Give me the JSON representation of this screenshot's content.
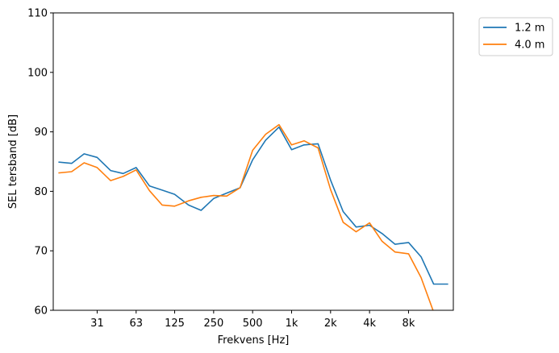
{
  "chart_data": {
    "type": "line",
    "xlabel": "Frekvens [Hz]",
    "ylabel": "SEL tersband [dB]",
    "ylim": [
      60,
      110
    ],
    "yticks": [
      60,
      70,
      80,
      90,
      100,
      110
    ],
    "x_scale": "log",
    "x_ticks": [
      {
        "value": 31.5,
        "label": "31"
      },
      {
        "value": 63,
        "label": "63"
      },
      {
        "value": 125,
        "label": "125"
      },
      {
        "value": 250,
        "label": "250"
      },
      {
        "value": 500,
        "label": "500"
      },
      {
        "value": 1000,
        "label": "1k"
      },
      {
        "value": 2000,
        "label": "2k"
      },
      {
        "value": 4000,
        "label": "4k"
      },
      {
        "value": 8000,
        "label": "8k"
      }
    ],
    "x": [
      16,
      20,
      25,
      31.5,
      40,
      50,
      63,
      80,
      100,
      125,
      160,
      200,
      250,
      315,
      400,
      500,
      630,
      800,
      1000,
      1250,
      1600,
      2000,
      2500,
      3150,
      4000,
      5000,
      6300,
      8000,
      10000,
      12500,
      16000
    ],
    "grid": false,
    "legend_position": "outside top-right",
    "series": [
      {
        "name": "1.2 m",
        "color": "#1f77b4",
        "values": [
          84.9,
          84.7,
          86.3,
          85.7,
          83.5,
          83.0,
          84.0,
          80.9,
          80.2,
          79.5,
          77.7,
          76.8,
          78.8,
          79.7,
          80.6,
          85.3,
          88.6,
          90.8,
          87.0,
          87.8,
          88.0,
          81.9,
          76.6,
          74.0,
          74.3,
          72.9,
          71.1,
          71.4,
          69.0,
          64.4,
          64.4
        ]
      },
      {
        "name": "4.0 m",
        "color": "#ff7f0e",
        "values": [
          83.1,
          83.3,
          84.8,
          84.0,
          81.8,
          82.5,
          83.6,
          80.1,
          77.7,
          77.5,
          78.4,
          79.0,
          79.3,
          79.2,
          80.6,
          86.9,
          89.6,
          91.2,
          87.8,
          88.5,
          87.3,
          80.3,
          74.8,
          73.2,
          74.7,
          71.6,
          69.8,
          69.5,
          65.5,
          59.7,
          59.7
        ]
      }
    ]
  }
}
